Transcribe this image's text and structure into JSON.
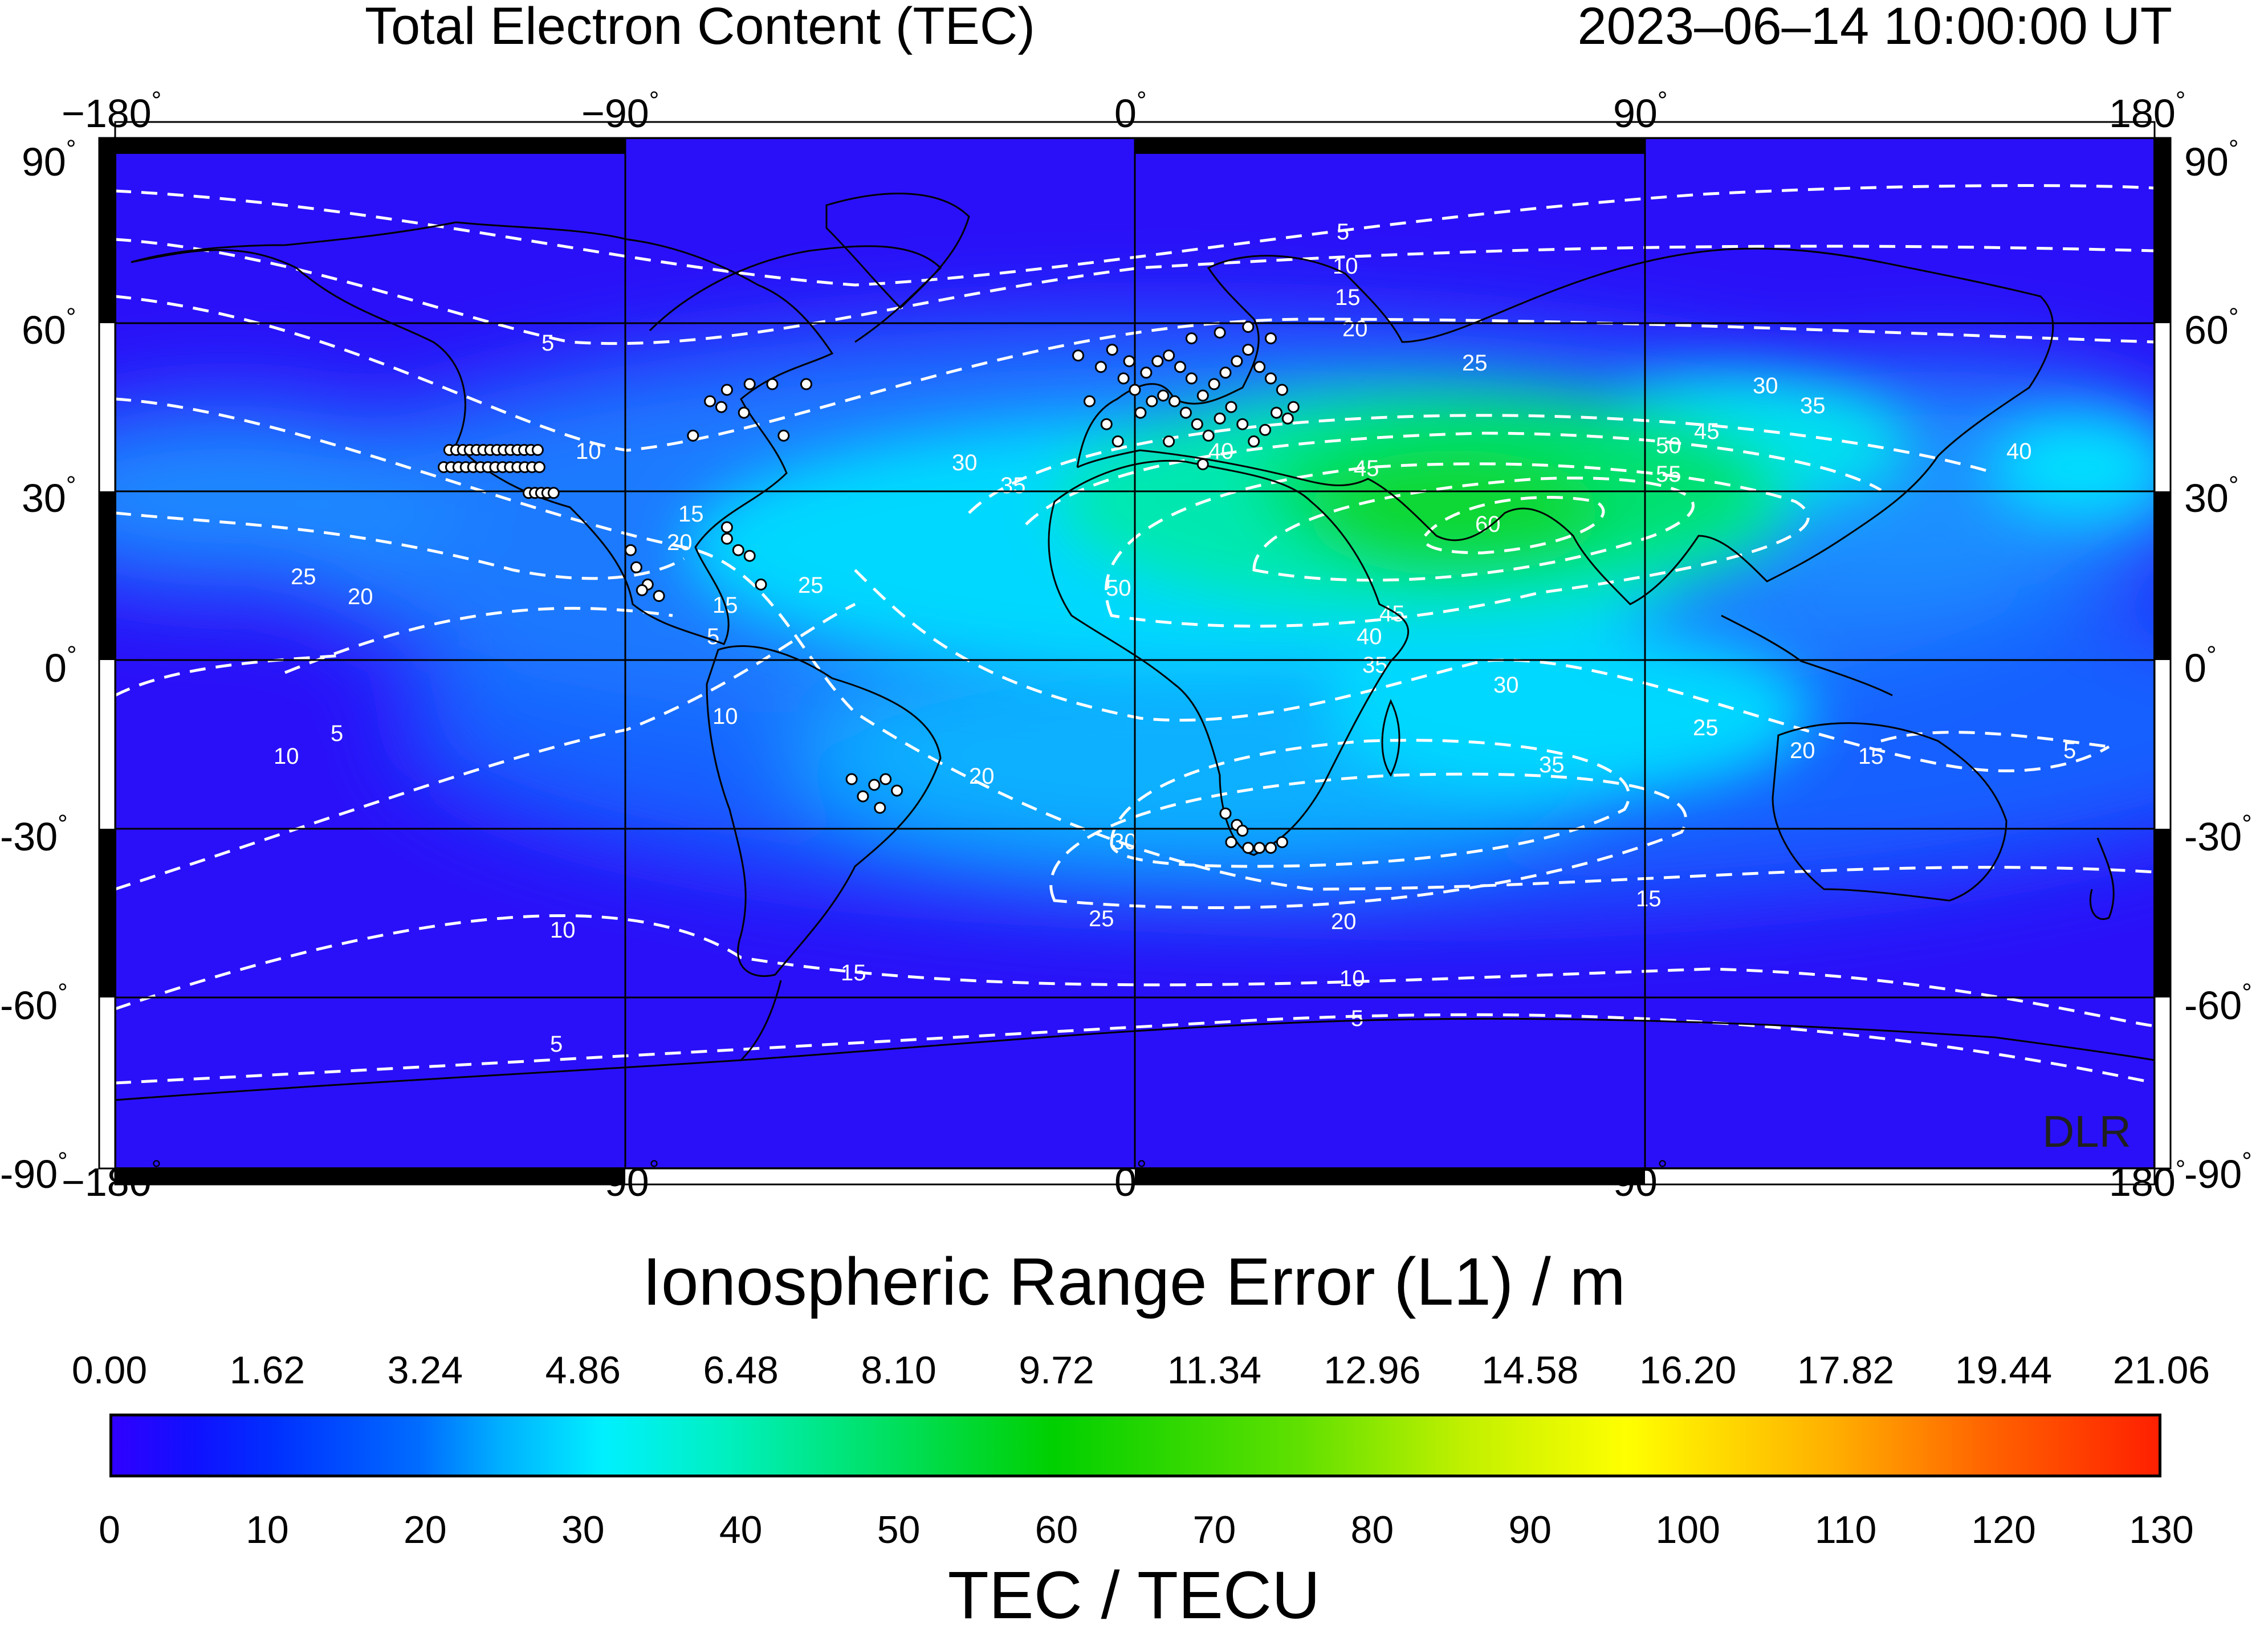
{
  "header": {
    "title": "Total Electron Content (TEC)",
    "datetime": "2023–06–14  10:00:00 UT"
  },
  "map": {
    "lon_ticks": [
      "−180",
      "−90",
      "0",
      "90",
      "180"
    ],
    "lat_ticks": [
      "90",
      "60",
      "30",
      "0",
      "-30",
      "-60",
      "-90"
    ],
    "lat_tick_values": [
      90,
      60,
      30,
      0,
      -30,
      -60,
      -90
    ],
    "lon_tick_values": [
      -180,
      -90,
      0,
      90,
      180
    ],
    "degree_symbol": "°",
    "credit": "DLR",
    "contour_labels": [
      "5",
      "10",
      "15",
      "20",
      "25",
      "30",
      "35",
      "40",
      "45",
      "50",
      "55",
      "60"
    ],
    "stations_color": "#ffffff",
    "contour_color": "#ffffff"
  },
  "chart_data": {
    "type": "heatmap",
    "title": "Total Electron Content (TEC)",
    "subtitle": "2023–06–14  10:00:00 UT",
    "xlim": [
      -180,
      180
    ],
    "ylim": [
      -90,
      90
    ],
    "contour_levels": [
      5,
      10,
      15,
      20,
      25,
      30,
      35,
      40,
      45,
      50,
      55,
      60
    ],
    "peak_tec_approx": 62,
    "peak_region": "North Africa / Middle East"
  },
  "colorbar": {
    "top_title": "Ionospheric Range Error (L1) / m",
    "top_ticks": [
      "0.00",
      "1.62",
      "3.24",
      "4.86",
      "6.48",
      "8.10",
      "9.72",
      "11.34",
      "12.96",
      "14.58",
      "16.20",
      "17.82",
      "19.44",
      "21.06"
    ],
    "bottom_title": "TEC / TECU",
    "bottom_ticks": [
      "0",
      "10",
      "20",
      "30",
      "40",
      "50",
      "60",
      "70",
      "80",
      "90",
      "100",
      "110",
      "120",
      "130"
    ],
    "range": [
      0,
      130
    ],
    "colors": [
      "#3000ff",
      "#00b0ff",
      "#00f0ff",
      "#00d000",
      "#ffff00",
      "#ff2000"
    ]
  }
}
